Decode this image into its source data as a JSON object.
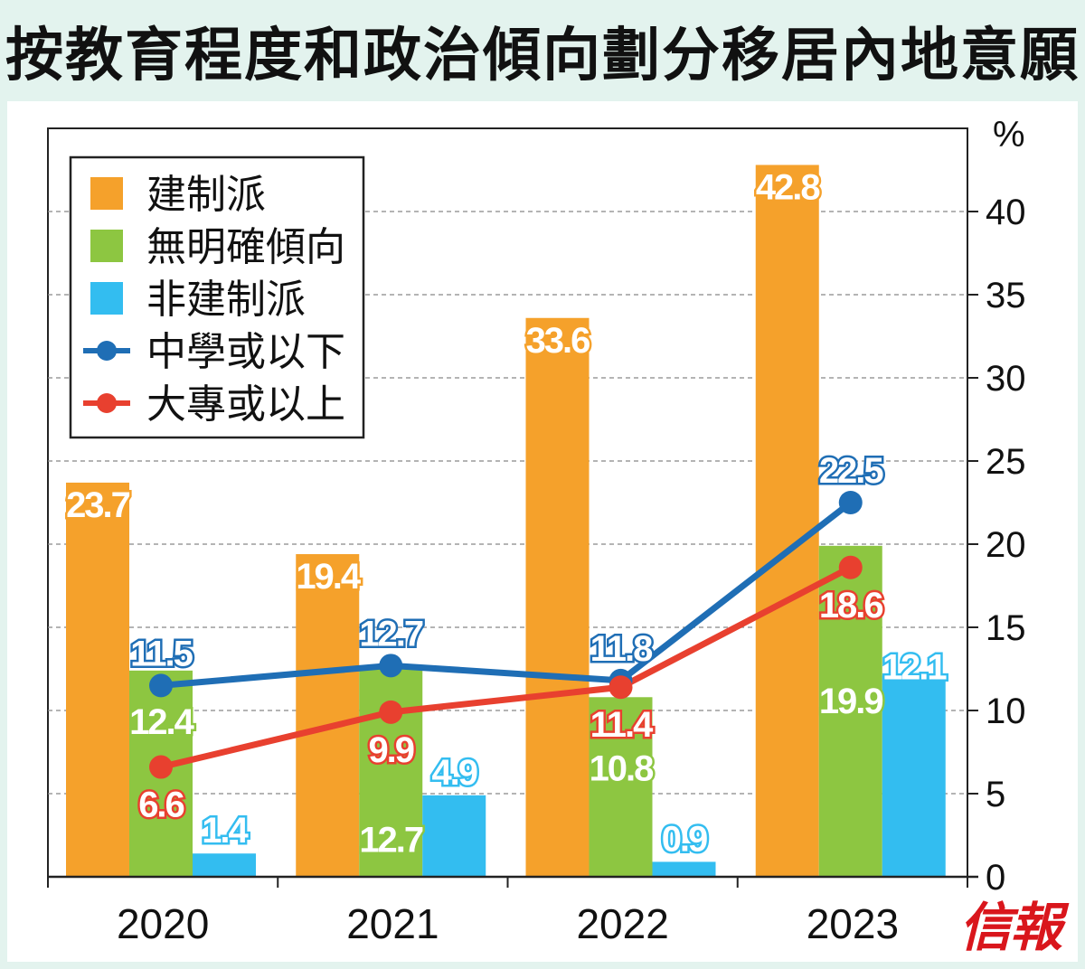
{
  "title": "按教育程度和政治傾向劃分移居內地意願",
  "logo_text": "信報",
  "colors": {
    "background": "#e3f3ee",
    "establishment": "#f5a12b",
    "no_leaning": "#8dc641",
    "non_establishment": "#33bdf0",
    "secondary_or_below": "#1f6eb5",
    "tertiary_or_above": "#e8402f"
  },
  "chart_data": {
    "type": "bar",
    "categories": [
      "2020",
      "2021",
      "2022",
      "2023"
    ],
    "ylabel": "%",
    "ylim": [
      0,
      45
    ],
    "yticks": [
      0,
      5,
      10,
      15,
      20,
      25,
      30,
      35,
      40
    ],
    "grid": true,
    "axis_position": "right",
    "legend_position": "top-left",
    "series": [
      {
        "name": "建制派",
        "kind": "bar",
        "color": "#f5a12b",
        "values": [
          23.7,
          19.4,
          33.6,
          42.8
        ]
      },
      {
        "name": "無明確傾向",
        "kind": "bar",
        "color": "#8dc641",
        "values": [
          12.4,
          12.7,
          10.8,
          19.9
        ]
      },
      {
        "name": "非建制派",
        "kind": "bar",
        "color": "#33bdf0",
        "values": [
          1.4,
          4.9,
          0.9,
          12.1
        ]
      },
      {
        "name": "中學或以下",
        "kind": "line",
        "color": "#1f6eb5",
        "values": [
          11.5,
          12.7,
          11.8,
          22.5
        ]
      },
      {
        "name": "大專或以上",
        "kind": "line",
        "color": "#e8402f",
        "values": [
          6.6,
          9.9,
          11.4,
          18.6
        ]
      }
    ]
  }
}
